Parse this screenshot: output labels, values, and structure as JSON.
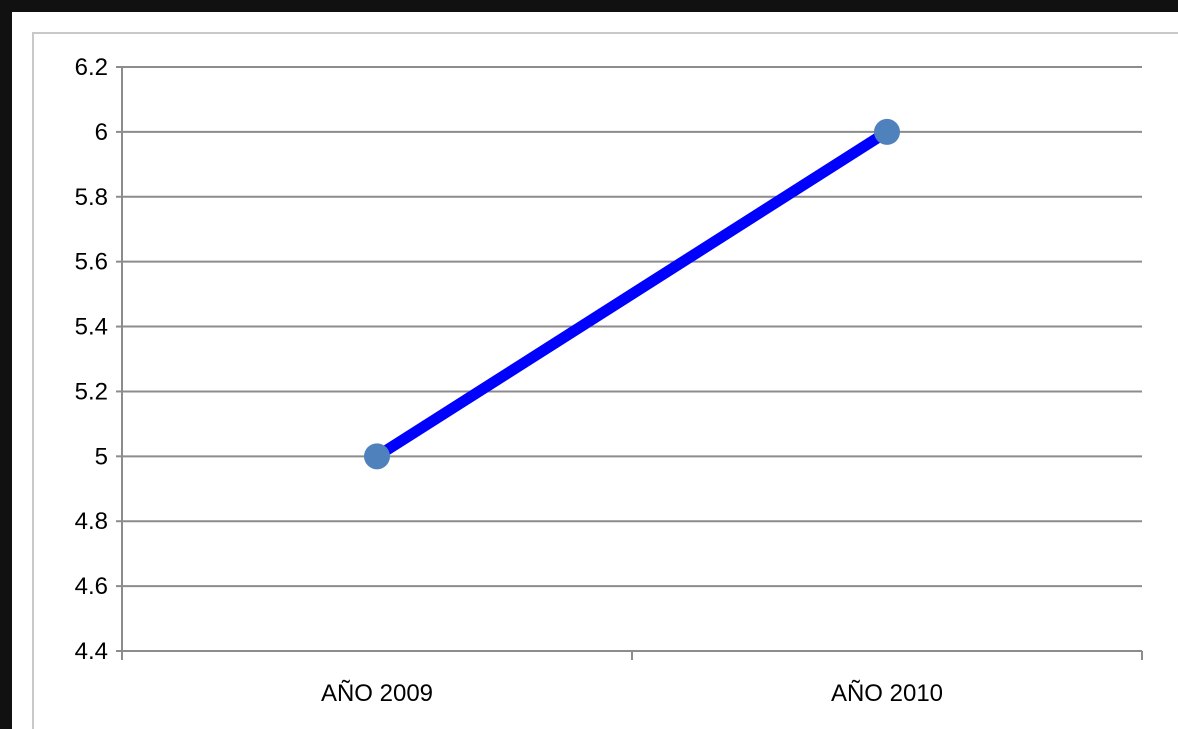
{
  "chart_data": {
    "type": "line",
    "title": "",
    "xlabel": "",
    "ylabel": "",
    "categories": [
      "AÑO 2009",
      "AÑO 2010"
    ],
    "series": [
      {
        "values": [
          5,
          6
        ],
        "color": "#0000ff",
        "marker_color": "#4f81bd"
      }
    ],
    "ylim": [
      4.4,
      6.2
    ],
    "yticks": [
      "4.4",
      "4.6",
      "4.8",
      "5",
      "5.2",
      "5.4",
      "5.6",
      "5.8",
      "6",
      "6.2"
    ],
    "grid": true,
    "legend": "none"
  }
}
